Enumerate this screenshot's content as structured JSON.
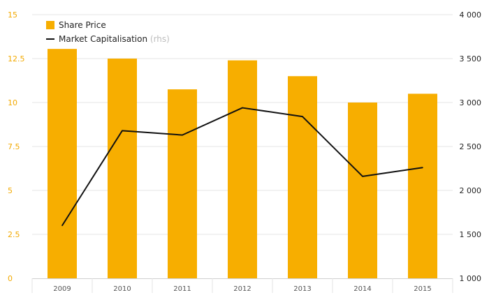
{
  "chart_data": {
    "type": "bar",
    "categories": [
      "2009",
      "2010",
      "2011",
      "2012",
      "2013",
      "2014",
      "2015"
    ],
    "series": [
      {
        "name": "Share Price",
        "kind": "bar",
        "axis": "left",
        "color": "#F7AE00",
        "values": [
          13.05,
          12.5,
          10.75,
          12.4,
          11.5,
          10.0,
          10.5
        ]
      },
      {
        "name": "Market Capitalisation",
        "name_suffix": "(rhs)",
        "kind": "line",
        "axis": "right",
        "color": "#111111",
        "values": [
          1600,
          2680,
          2630,
          2940,
          2840,
          2160,
          2260
        ]
      }
    ],
    "y_left": {
      "ylim": [
        0,
        15
      ],
      "ticks": [
        0,
        2.5,
        5,
        7.5,
        10,
        12.5,
        15
      ],
      "tick_labels": [
        "0",
        "2.5",
        "5",
        "7.5",
        "10",
        "12.5",
        "15"
      ],
      "tick_color": "#F2A900"
    },
    "y_right": {
      "ylim": [
        1000,
        4000
      ],
      "ticks": [
        1000,
        1500,
        2000,
        2500,
        3000,
        3500,
        4000
      ],
      "tick_labels": [
        "1 000",
        "1 500",
        "2 000",
        "2 500",
        "3 000",
        "3 500",
        "4 000"
      ],
      "tick_color": "#222222"
    },
    "grid": true,
    "legend": {
      "placement": "top-left",
      "entries": [
        {
          "label": "Share Price",
          "suffix": ""
        },
        {
          "label": "Market Capitalisation",
          "suffix": "(rhs)"
        }
      ]
    }
  }
}
